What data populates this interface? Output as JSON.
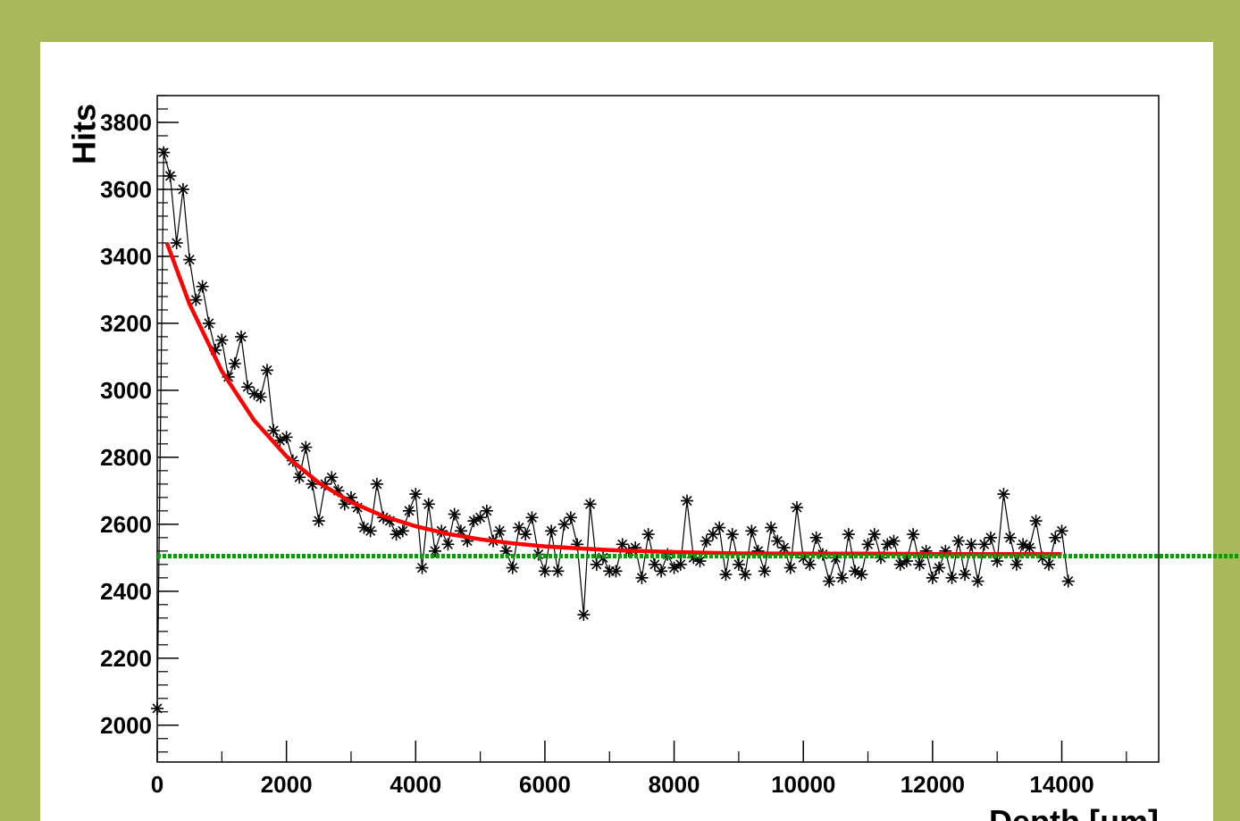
{
  "chart_data": {
    "type": "scatter",
    "x_label": "Depth [μm]",
    "y_label": "Hits",
    "xlim": [
      0,
      15500
    ],
    "ylim": [
      1890,
      3880
    ],
    "xticks": [
      0,
      2000,
      4000,
      6000,
      8000,
      10000,
      12000,
      14000
    ],
    "yticks": [
      2000,
      2200,
      2400,
      2600,
      2800,
      3000,
      3200,
      3400,
      3600,
      3800
    ],
    "series": [
      {
        "color": "#000000",
        "x": [
          0,
          100,
          200,
          300,
          400,
          500,
          600,
          700,
          800,
          900,
          1000,
          1100,
          1200,
          1300,
          1400,
          1500,
          1600,
          1700,
          1800,
          1900,
          2000,
          2100,
          2200,
          2300,
          2400,
          2500,
          2600,
          2700,
          2800,
          2900,
          3000,
          3100,
          3200,
          3300,
          3400,
          3500,
          3600,
          3700,
          3800,
          3900,
          4000,
          4100,
          4200,
          4300,
          4400,
          4500,
          4600,
          4700,
          4800,
          4900,
          5000,
          5100,
          5200,
          5300,
          5400,
          5500,
          5600,
          5700,
          5800,
          5900,
          6000,
          6100,
          6200,
          6300,
          6400,
          6500,
          6600,
          6700,
          6800,
          6900,
          7000,
          7100,
          7200,
          7300,
          7400,
          7500,
          7600,
          7700,
          7800,
          7900,
          8000,
          8100,
          8200,
          8300,
          8400,
          8500,
          8600,
          8700,
          8800,
          8900,
          9000,
          9100,
          9200,
          9300,
          9400,
          9500,
          9600,
          9700,
          9800,
          9900,
          10000,
          10100,
          10200,
          10300,
          10400,
          10500,
          10600,
          10700,
          10800,
          10900,
          11000,
          11100,
          11200,
          11300,
          11400,
          11500,
          11600,
          11700,
          11800,
          11900,
          12000,
          12100,
          12200,
          12300,
          12400,
          12500,
          12600,
          12700,
          12800,
          12900,
          13000,
          13100,
          13200,
          13300,
          13400,
          13500,
          13600,
          13700,
          13800,
          13900,
          14000,
          14100
        ],
        "values": [
          2050,
          3710,
          3640,
          3440,
          3600,
          3390,
          3270,
          3310,
          3200,
          3120,
          3150,
          3040,
          3080,
          3160,
          3010,
          2990,
          2980,
          3060,
          2880,
          2850,
          2860,
          2790,
          2740,
          2830,
          2720,
          2610,
          2720,
          2740,
          2700,
          2660,
          2680,
          2650,
          2590,
          2580,
          2720,
          2620,
          2610,
          2570,
          2580,
          2640,
          2690,
          2470,
          2660,
          2520,
          2580,
          2540,
          2630,
          2580,
          2550,
          2610,
          2620,
          2640,
          2550,
          2580,
          2520,
          2470,
          2590,
          2570,
          2620,
          2510,
          2460,
          2580,
          2460,
          2600,
          2620,
          2540,
          2330,
          2660,
          2480,
          2500,
          2460,
          2460,
          2540,
          2520,
          2530,
          2440,
          2570,
          2480,
          2460,
          2510,
          2470,
          2480,
          2670,
          2500,
          2490,
          2550,
          2570,
          2590,
          2450,
          2570,
          2480,
          2450,
          2580,
          2520,
          2460,
          2590,
          2550,
          2530,
          2470,
          2650,
          2500,
          2480,
          2560,
          2510,
          2430,
          2500,
          2440,
          2570,
          2460,
          2450,
          2540,
          2570,
          2500,
          2540,
          2550,
          2480,
          2490,
          2570,
          2480,
          2520,
          2440,
          2470,
          2520,
          2440,
          2550,
          2450,
          2540,
          2430,
          2540,
          2560,
          2490,
          2690,
          2560,
          2480,
          2540,
          2530,
          2610,
          2500,
          2480,
          2560,
          2580,
          2430
        ]
      },
      {
        "color": "#ff0000",
        "line_only": true,
        "x": [
          150,
          500,
          1000,
          1500,
          2000,
          2500,
          3000,
          3500,
          4000,
          4500,
          5000,
          5500,
          6000,
          6500,
          7000,
          8000,
          9000,
          10000,
          11000,
          12000,
          13000,
          14000
        ],
        "values": [
          3440,
          3257,
          3057,
          2910,
          2803,
          2724,
          2666,
          2624,
          2594,
          2571,
          2555,
          2543,
          2534,
          2528,
          2523,
          2517,
          2513,
          2512,
          2512,
          2511,
          2511,
          2511
        ]
      }
    ],
    "reference_line": {
      "value": 2505,
      "color": "#00a000"
    }
  }
}
